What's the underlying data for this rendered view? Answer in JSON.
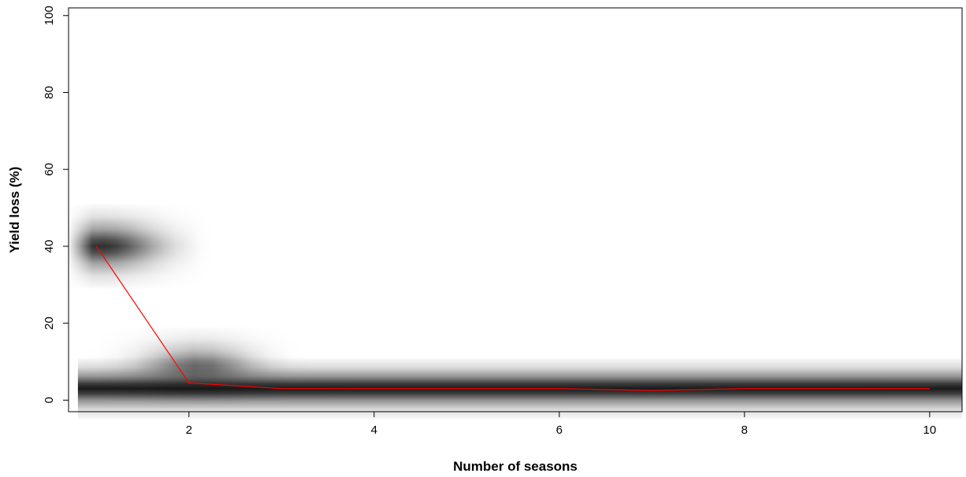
{
  "chart_data": {
    "type": "line",
    "title": "",
    "xlabel": "Number of seasons",
    "ylabel": "Yield loss (%)",
    "xlim": [
      0.7,
      10.35
    ],
    "ylim": [
      -3,
      102
    ],
    "x_ticks": [
      2,
      4,
      6,
      8,
      10
    ],
    "y_ticks": [
      0,
      20,
      40,
      60,
      80,
      100
    ],
    "grid": false,
    "legend": "none",
    "line_color": "#ff0000",
    "series": [
      {
        "x": [
          1,
          2,
          3,
          4,
          5,
          6,
          7,
          8,
          9,
          10
        ],
        "values": [
          40,
          4.5,
          3,
          3,
          3,
          3,
          2.5,
          3,
          3,
          3
        ]
      }
    ],
    "density_blobs": [
      {
        "x_start": 0.7,
        "x_end": 2.25,
        "y_center": 40,
        "y_halfwidth": 11,
        "peak_x": 1.05,
        "x_spread": 0.6,
        "max_opacity": 0.82
      },
      {
        "x_start": 0.8,
        "x_end": 3.3,
        "y_center": 9,
        "y_halfwidth": 10,
        "peak_x": 2.1,
        "x_spread": 0.55,
        "max_opacity": 0.55
      },
      {
        "x_start": 0.8,
        "x_end": 10.35,
        "y_center": 3,
        "y_halfwidth": 8,
        "peak_x": 5.5,
        "x_spread": 100,
        "max_opacity": 0.9
      }
    ]
  }
}
